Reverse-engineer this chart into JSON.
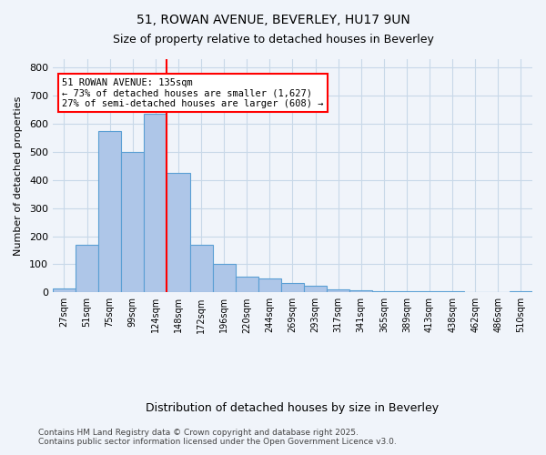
{
  "title1": "51, ROWAN AVENUE, BEVERLEY, HU17 9UN",
  "title2": "Size of property relative to detached houses in Beverley",
  "xlabel": "Distribution of detached houses by size in Beverley",
  "ylabel": "Number of detached properties",
  "bins": [
    "27sqm",
    "51sqm",
    "75sqm",
    "99sqm",
    "124sqm",
    "148sqm",
    "172sqm",
    "196sqm",
    "220sqm",
    "244sqm",
    "269sqm",
    "293sqm",
    "317sqm",
    "341sqm",
    "365sqm",
    "389sqm",
    "413sqm",
    "438sqm",
    "462sqm",
    "486sqm",
    "510sqm"
  ],
  "values": [
    15,
    170,
    575,
    500,
    635,
    425,
    170,
    100,
    55,
    50,
    35,
    25,
    10,
    8,
    5,
    5,
    4,
    3,
    2,
    0,
    5
  ],
  "bar_color": "#aec6e8",
  "bar_edge_color": "#5a9fd4",
  "vline_x": 5,
  "vline_color": "red",
  "annotation_title": "51 ROWAN AVENUE: 135sqm",
  "annotation_line1": "← 73% of detached houses are smaller (1,627)",
  "annotation_line2": "27% of semi-detached houses are larger (608) →",
  "annotation_box_color": "white",
  "annotation_box_edge": "red",
  "footer1": "Contains HM Land Registry data © Crown copyright and database right 2025.",
  "footer2": "Contains public sector information licensed under the Open Government Licence v3.0.",
  "bg_color": "#f0f4fa",
  "grid_color": "#c8d8e8",
  "ylim": [
    0,
    830
  ],
  "yticks": [
    0,
    100,
    200,
    300,
    400,
    500,
    600,
    700,
    800
  ]
}
